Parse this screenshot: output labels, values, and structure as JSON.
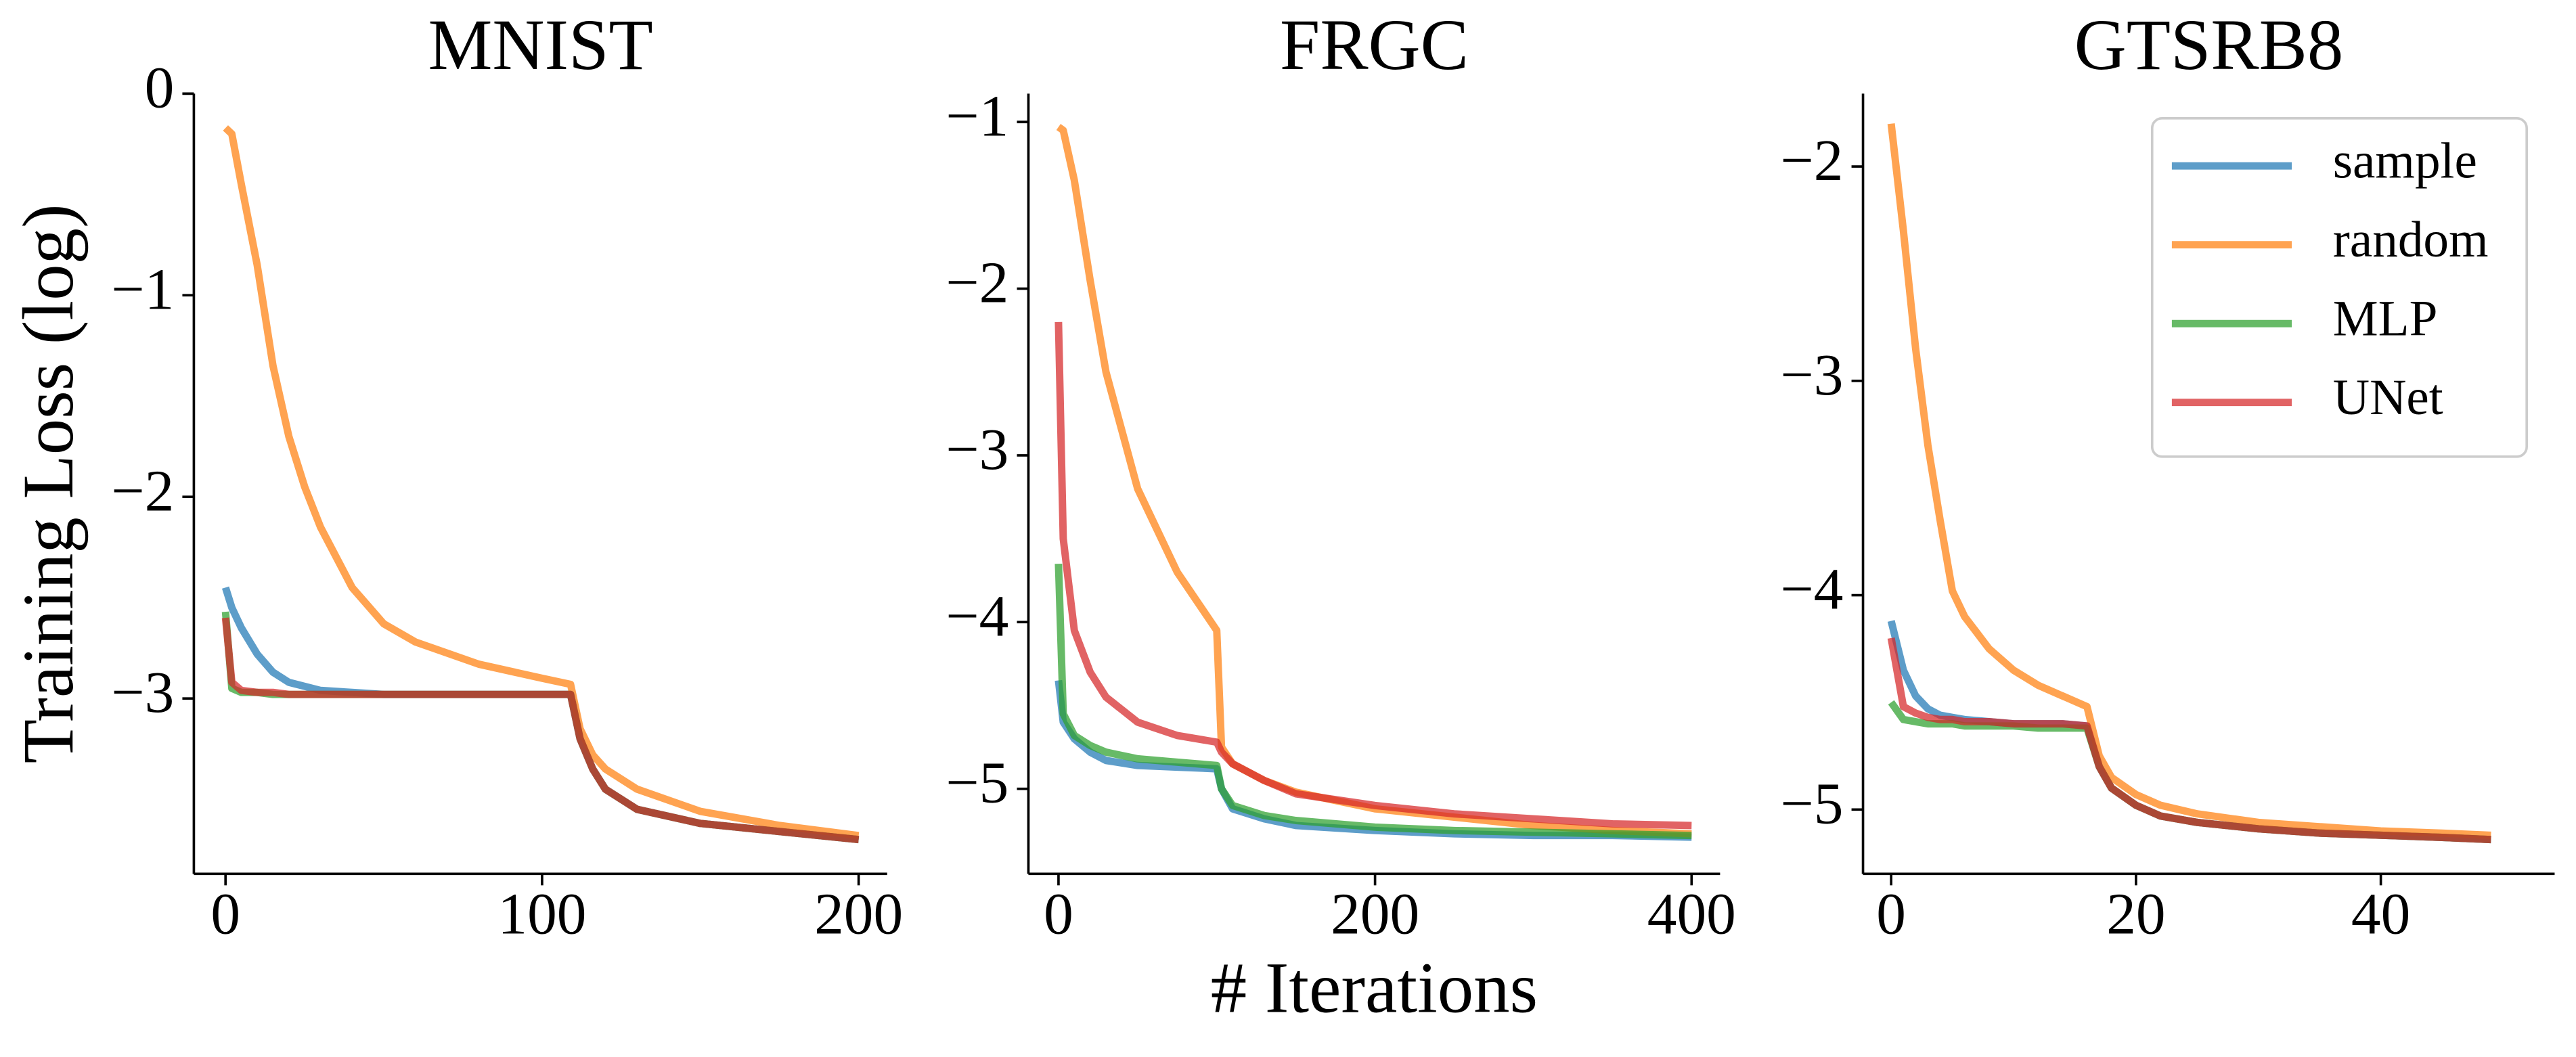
{
  "chart_data": [
    {
      "type": "line",
      "title": "MNIST",
      "ylabel": "Training Loss (log)",
      "x": [
        0,
        2,
        5,
        10,
        15,
        20,
        25,
        30,
        40,
        50,
        60,
        80,
        100,
        109,
        112,
        116,
        120,
        130,
        150,
        175,
        200
      ],
      "series": [
        {
          "name": "sample",
          "color": "#1f77b4",
          "values": [
            -2.45,
            -2.55,
            -2.65,
            -2.78,
            -2.87,
            -2.92,
            -2.94,
            -2.96,
            -2.97,
            -2.98,
            -2.98,
            -2.98,
            -2.98,
            -2.98,
            -3.2,
            -3.35,
            -3.45,
            -3.55,
            -3.62,
            -3.66,
            -3.7
          ]
        },
        {
          "name": "random",
          "color": "#ff7f0e",
          "values": [
            -0.17,
            -0.2,
            -0.45,
            -0.85,
            -1.35,
            -1.7,
            -1.95,
            -2.15,
            -2.45,
            -2.63,
            -2.72,
            -2.83,
            -2.9,
            -2.93,
            -3.15,
            -3.28,
            -3.35,
            -3.45,
            -3.56,
            -3.63,
            -3.68
          ]
        },
        {
          "name": "MLP",
          "color": "#2ca02c",
          "values": [
            -2.57,
            -2.95,
            -2.97,
            -2.97,
            -2.98,
            -2.98,
            -2.98,
            -2.98,
            -2.98,
            -2.98,
            -2.98,
            -2.98,
            -2.98,
            -2.98,
            -3.2,
            -3.35,
            -3.45,
            -3.55,
            -3.62,
            -3.66,
            -3.7
          ]
        },
        {
          "name": "UNet",
          "color": "#d62728",
          "values": [
            -2.6,
            -2.92,
            -2.96,
            -2.97,
            -2.97,
            -2.98,
            -2.98,
            -2.98,
            -2.98,
            -2.98,
            -2.98,
            -2.98,
            -2.98,
            -2.98,
            -3.2,
            -3.35,
            -3.45,
            -3.55,
            -3.62,
            -3.66,
            -3.7
          ]
        }
      ],
      "xlim": [
        -10,
        209
      ],
      "ylim": [
        -3.87,
        0.0
      ],
      "xticks": [
        0,
        100,
        200
      ],
      "yticks": [
        0,
        {
          "value": -1,
          "label": "−1"
        },
        {
          "value": -2,
          "label": "−2"
        },
        {
          "value": -3,
          "label": "−3"
        }
      ]
    },
    {
      "type": "line",
      "title": "FRGC",
      "xlabel": "# Iterations",
      "x": [
        0,
        3,
        10,
        20,
        30,
        50,
        75,
        100,
        103,
        110,
        130,
        150,
        200,
        250,
        300,
        350,
        400
      ],
      "series": [
        {
          "name": "sample",
          "color": "#1f77b4",
          "values": [
            -4.35,
            -4.6,
            -4.7,
            -4.78,
            -4.83,
            -4.86,
            -4.87,
            -4.88,
            -5.0,
            -5.12,
            -5.18,
            -5.22,
            -5.25,
            -5.27,
            -5.28,
            -5.28,
            -5.29
          ]
        },
        {
          "name": "random",
          "color": "#ff7f0e",
          "values": [
            -1.03,
            -1.05,
            -1.35,
            -1.95,
            -2.5,
            -3.2,
            -3.7,
            -4.05,
            -4.75,
            -4.85,
            -4.95,
            -5.02,
            -5.12,
            -5.17,
            -5.22,
            -5.25,
            -5.27
          ]
        },
        {
          "name": "MLP",
          "color": "#2ca02c",
          "values": [
            -3.65,
            -4.55,
            -4.68,
            -4.74,
            -4.78,
            -4.82,
            -4.84,
            -4.86,
            -5.0,
            -5.1,
            -5.16,
            -5.19,
            -5.23,
            -5.25,
            -5.26,
            -5.27,
            -5.28
          ]
        },
        {
          "name": "UNet",
          "color": "#d62728",
          "values": [
            -2.2,
            -3.5,
            -4.05,
            -4.3,
            -4.45,
            -4.6,
            -4.68,
            -4.72,
            -4.78,
            -4.85,
            -4.95,
            -5.03,
            -5.1,
            -5.15,
            -5.18,
            -5.21,
            -5.22
          ]
        }
      ],
      "xlim": [
        -19,
        418
      ],
      "ylim": [
        -5.51,
        -0.83
      ],
      "xticks": [
        0,
        200,
        400
      ],
      "yticks": [
        {
          "value": -1,
          "label": "−1"
        },
        {
          "value": -2,
          "label": "−2"
        },
        {
          "value": -3,
          "label": "−3"
        },
        {
          "value": -4,
          "label": "−4"
        },
        {
          "value": -5,
          "label": "−5"
        }
      ]
    },
    {
      "type": "line",
      "title": "GTSRB8",
      "legend": "upper right",
      "x": [
        0,
        1,
        2,
        3,
        4,
        5,
        6,
        8,
        10,
        12,
        14,
        16,
        17,
        18,
        20,
        22,
        25,
        30,
        35,
        40,
        45,
        49
      ],
      "series": [
        {
          "name": "sample",
          "color": "#1f77b4",
          "values": [
            -4.12,
            -4.35,
            -4.47,
            -4.53,
            -4.56,
            -4.57,
            -4.58,
            -4.59,
            -4.6,
            -4.6,
            -4.6,
            -4.61,
            -4.8,
            -4.9,
            -4.98,
            -5.03,
            -5.06,
            -5.09,
            -5.11,
            -5.12,
            -5.13,
            -5.14
          ]
        },
        {
          "name": "random",
          "color": "#ff7f0e",
          "values": [
            -1.8,
            -2.3,
            -2.85,
            -3.3,
            -3.65,
            -3.98,
            -4.1,
            -4.25,
            -4.35,
            -4.42,
            -4.47,
            -4.52,
            -4.75,
            -4.85,
            -4.93,
            -4.98,
            -5.02,
            -5.06,
            -5.08,
            -5.1,
            -5.11,
            -5.12
          ]
        },
        {
          "name": "MLP",
          "color": "#2ca02c",
          "values": [
            -4.5,
            -4.58,
            -4.59,
            -4.6,
            -4.6,
            -4.6,
            -4.61,
            -4.61,
            -4.61,
            -4.62,
            -4.62,
            -4.62,
            -4.8,
            -4.9,
            -4.98,
            -5.03,
            -5.06,
            -5.09,
            -5.11,
            -5.12,
            -5.13,
            -5.14
          ]
        },
        {
          "name": "UNet",
          "color": "#d62728",
          "values": [
            -4.2,
            -4.52,
            -4.55,
            -4.57,
            -4.58,
            -4.58,
            -4.59,
            -4.59,
            -4.6,
            -4.6,
            -4.6,
            -4.61,
            -4.8,
            -4.9,
            -4.98,
            -5.03,
            -5.06,
            -5.09,
            -5.11,
            -5.12,
            -5.13,
            -5.14
          ]
        }
      ],
      "xlim": [
        -2.3,
        54.2
      ],
      "ylim": [
        -5.3,
        -1.66
      ],
      "xticks": [
        0,
        20,
        40
      ],
      "yticks": [
        {
          "value": -2,
          "label": "−2"
        },
        {
          "value": -3,
          "label": "−3"
        },
        {
          "value": -4,
          "label": "−4"
        },
        {
          "value": -5,
          "label": "−5"
        }
      ]
    }
  ]
}
